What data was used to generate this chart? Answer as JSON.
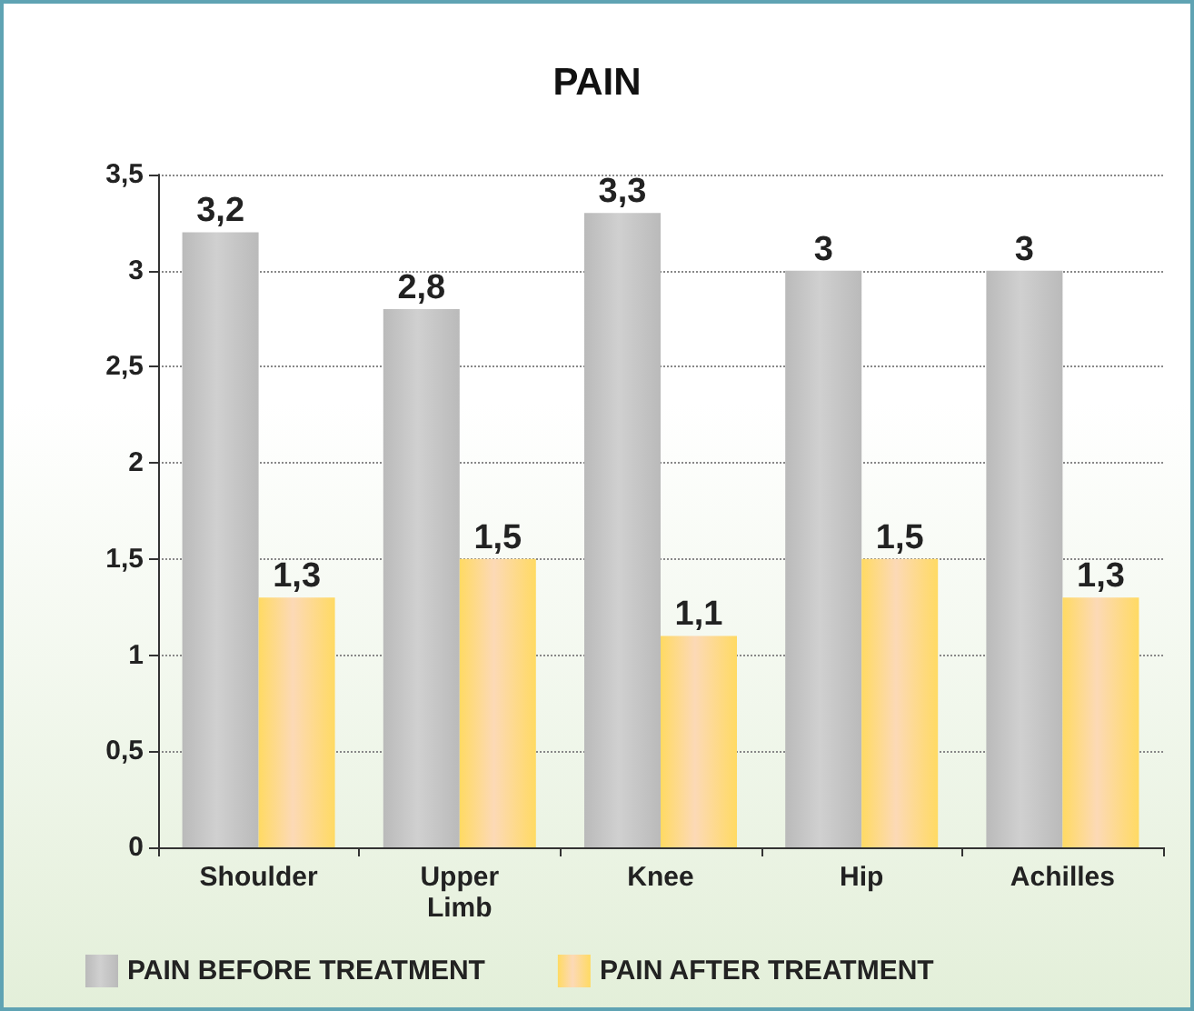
{
  "chart_data": {
    "type": "bar",
    "title": "PAIN",
    "categories": [
      "Shoulder",
      "Upper\nLimb",
      "Knee",
      "Hip",
      "Achilles"
    ],
    "series": [
      {
        "name": "PAIN BEFORE TREATMENT",
        "color": "#8a8a8a",
        "values": [
          3.2,
          2.8,
          3.3,
          3,
          3
        ],
        "value_labels": [
          "3,2",
          "2,8",
          "3,3",
          "3",
          "3"
        ]
      },
      {
        "name": "PAIN AFTER TREATMENT",
        "color": "#f9a24a",
        "values": [
          1.3,
          1.5,
          1.1,
          1.5,
          1.3
        ],
        "value_labels": [
          "1,3",
          "1,5",
          "1,1",
          "1,5",
          "1,3"
        ]
      }
    ],
    "ylim": [
      0,
      3.5
    ],
    "yticks": [
      {
        "value": 0,
        "label": "0"
      },
      {
        "value": 0.5,
        "label": "0,5"
      },
      {
        "value": 1,
        "label": "1"
      },
      {
        "value": 1.5,
        "label": "1,5"
      },
      {
        "value": 2,
        "label": "2"
      },
      {
        "value": 2.5,
        "label": "2,5"
      },
      {
        "value": 3,
        "label": "3"
      },
      {
        "value": 3.5,
        "label": "3,5"
      }
    ],
    "grid": "y",
    "legend": "bottom"
  }
}
